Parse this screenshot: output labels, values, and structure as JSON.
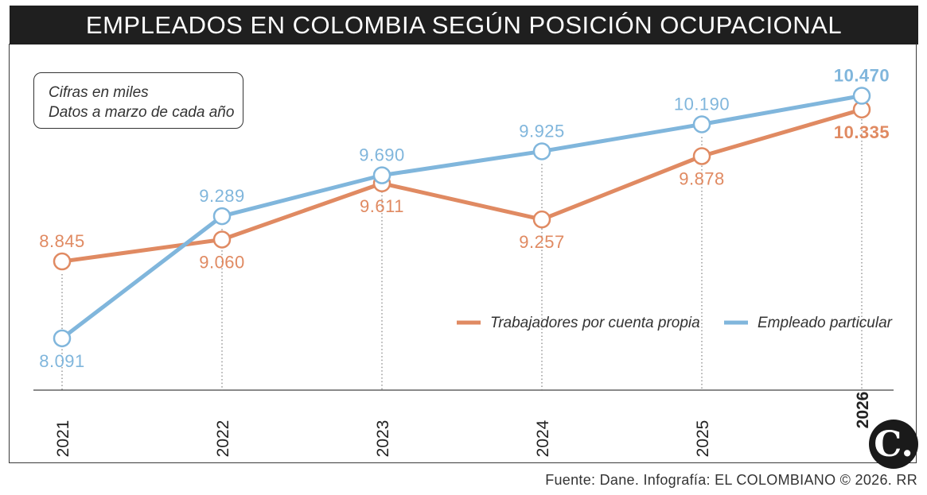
{
  "title": "EMPLEADOS EN COLOMBIA SEGÚN POSICIÓN OCUPACIONAL",
  "notes": [
    "Cifras en miles",
    "Datos a marzo de cada año"
  ],
  "source": "Fuente: Dane. Infografía: EL COLOMBIANO © 2026. RR",
  "logo": "C.",
  "chart_data": {
    "type": "line",
    "categories": [
      "2021",
      "2022",
      "2023",
      "2024",
      "2025",
      "2026"
    ],
    "highlight_category": "2026",
    "ylim": [
      7700,
      10700
    ],
    "grid": false,
    "legend_position": "right",
    "series": [
      {
        "name": "Trabajadores por cuenta propia",
        "color": "#e08a62",
        "values": [
          8845,
          9060,
          9611,
          9257,
          9878,
          10335
        ],
        "labels": [
          "8.845",
          "9.060",
          "9.611",
          "9.257",
          "9.878",
          "10.335"
        ],
        "label_pos": [
          "above",
          "below",
          "below",
          "below",
          "below",
          "below"
        ]
      },
      {
        "name": "Empleado particular",
        "color": "#80b6dc",
        "values": [
          8091,
          9289,
          9690,
          9925,
          10190,
          10470
        ],
        "labels": [
          "8.091",
          "9.289",
          "9.690",
          "9.925",
          "10.190",
          "10.470"
        ],
        "label_pos": [
          "below",
          "above",
          "above",
          "above",
          "above",
          "above"
        ]
      }
    ]
  }
}
